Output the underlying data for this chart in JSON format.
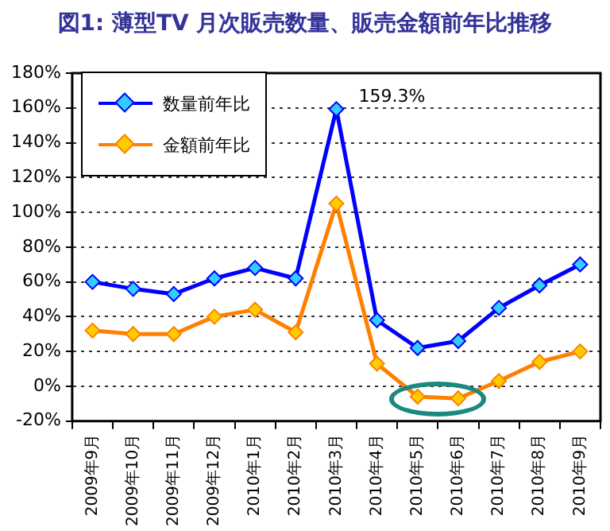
{
  "chart_data": {
    "type": "line",
    "title": "図1: 薄型TV 月次販売数量、販売金額前年比推移",
    "categories": [
      "2009年9月",
      "2009年10月",
      "2009年11月",
      "2009年12月",
      "2010年1月",
      "2010年2月",
      "2010年3月",
      "2010年4月",
      "2010年5月",
      "2010年6月",
      "2010年7月",
      "2010年8月",
      "2010年9月"
    ],
    "series": [
      {
        "name": "数量前年比",
        "color": "#0000ff",
        "values": [
          60,
          56,
          53,
          62,
          68,
          62,
          159.3,
          38,
          22,
          26,
          45,
          58,
          70
        ],
        "value_labels": [
          null,
          null,
          null,
          null,
          null,
          null,
          "159.3%",
          null,
          null,
          null,
          null,
          null,
          null
        ]
      },
      {
        "name": "金額前年比",
        "color": "#ff8000",
        "values": [
          32,
          30,
          30,
          40,
          44,
          31,
          105,
          13,
          -6,
          -7,
          3,
          14,
          20
        ]
      }
    ],
    "ylim": [
      -20,
      180
    ],
    "yticks": [
      {
        "value": -20,
        "label": "-20%"
      },
      {
        "value": 0,
        "label": "0%"
      },
      {
        "value": 20,
        "label": "20%"
      },
      {
        "value": 40,
        "label": "40%"
      },
      {
        "value": 60,
        "label": "60%"
      },
      {
        "value": 80,
        "label": "80%"
      },
      {
        "value": 100,
        "label": "100%"
      },
      {
        "value": 120,
        "label": "120%"
      },
      {
        "value": 140,
        "label": "140%"
      },
      {
        "value": 160,
        "label": "160%"
      },
      {
        "value": 180,
        "label": "180%"
      }
    ],
    "grid": "y",
    "legend": "top left",
    "marker": "diamond",
    "line_style": "solid"
  }
}
